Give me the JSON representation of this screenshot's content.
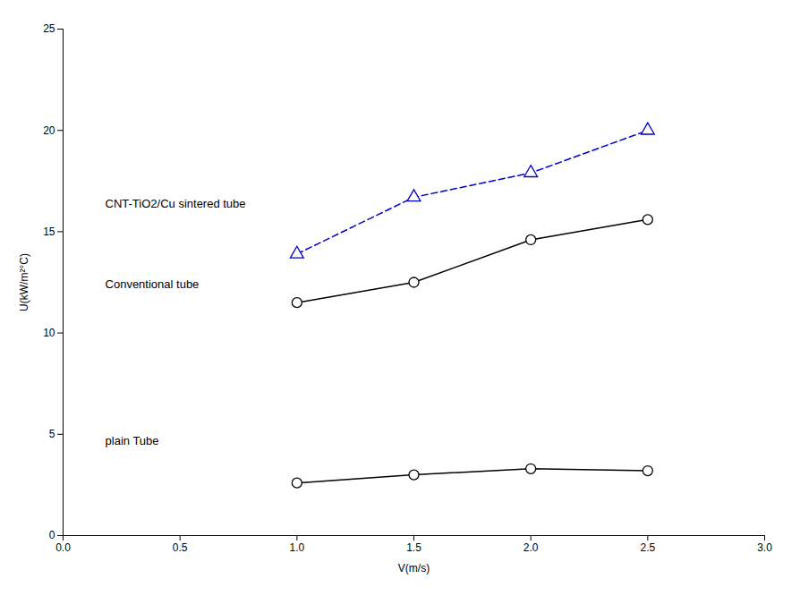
{
  "chart_data": {
    "type": "line",
    "x": [
      1.0,
      1.5,
      2.0,
      2.5
    ],
    "series": [
      {
        "name": "CNT-TiO2/Cu sintered tube",
        "color": "#0000cc",
        "values": [
          13.9,
          16.7,
          17.9,
          20.0
        ],
        "marker": "triangle",
        "line_style": "dashed"
      },
      {
        "name": "Conventional tube",
        "color": "#000000",
        "values": [
          11.5,
          12.5,
          14.6,
          15.6
        ],
        "marker": "circle",
        "line_style": "solid"
      },
      {
        "name": "plain Tube",
        "color": "#000000",
        "values": [
          2.6,
          3.0,
          3.3,
          3.2
        ],
        "marker": "circle",
        "line_style": "solid"
      }
    ],
    "annotations": [
      {
        "text": "CNT-TiO2/Cu sintered tube",
        "x": 0.18,
        "y": 16.2
      },
      {
        "text": "Conventional tube",
        "x": 0.18,
        "y": 12.2
      },
      {
        "text": "plain Tube",
        "x": 0.18,
        "y": 4.5
      }
    ],
    "x_label": "V(m/s)",
    "y_label": "U(kW/m²°C)",
    "xlim": [
      0,
      3
    ],
    "ylim": [
      0,
      25
    ],
    "xticks": [
      {
        "value": 0,
        "label": "0.0"
      },
      0.5,
      {
        "value": 1.0,
        "label": "1.0"
      },
      1.5,
      {
        "value": 2.0,
        "label": "2.0"
      },
      2.5,
      {
        "value": 3.0,
        "label": "3.0"
      }
    ],
    "yticks": [
      0,
      5,
      10,
      15,
      20,
      25
    ],
    "grid": false
  }
}
